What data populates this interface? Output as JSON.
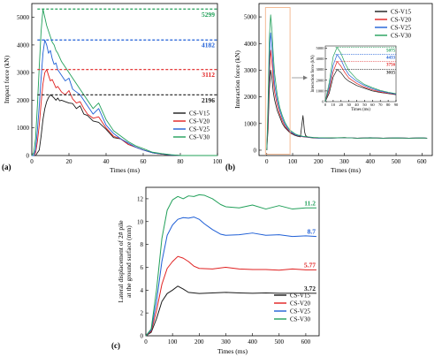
{
  "colors": {
    "CS-V15": "#1a1a1a",
    "CS-V20": "#e02020",
    "CS-V25": "#1f5fd6",
    "CS-V30": "#22a05a",
    "highlight_box": "#f3b48a",
    "arrow": "#777777"
  },
  "chart_data": [
    {
      "id": "a",
      "panel_label": "(a)",
      "type": "line",
      "xlabel": "Times (ms)",
      "ylabel": "Impact force (kN)",
      "xlim": [
        0,
        100
      ],
      "ylim": [
        0,
        5500
      ],
      "xticks": [
        "0",
        "20",
        "40",
        "60",
        "80",
        "100"
      ],
      "yticks": [
        "0",
        "1000",
        "2000",
        "3000",
        "4000",
        "5000"
      ],
      "legend_position": "bottom-right",
      "series": [
        {
          "name": "CS-V15",
          "peak": 2196,
          "peak_label": "2196",
          "x": [
            0,
            2,
            4,
            5,
            6,
            7,
            8,
            9,
            10,
            11,
            12,
            13,
            14,
            15,
            16,
            18,
            20,
            22,
            24,
            26,
            28,
            30,
            33,
            36,
            40,
            44,
            48,
            52,
            56,
            60,
            65,
            70,
            75,
            80,
            90,
            100
          ],
          "y": [
            0,
            0,
            200,
            700,
            1300,
            1700,
            1950,
            2100,
            2196,
            2150,
            2080,
            2000,
            2080,
            1980,
            2000,
            1950,
            1900,
            1880,
            1700,
            1800,
            1500,
            1450,
            1250,
            1200,
            950,
            650,
            600,
            400,
            300,
            200,
            100,
            50,
            20,
            0,
            0,
            0
          ]
        },
        {
          "name": "CS-V20",
          "peak": 3112,
          "peak_label": "3112",
          "x": [
            0,
            1,
            2,
            3,
            4,
            5,
            6,
            7,
            8,
            9,
            10,
            11,
            12,
            13,
            14,
            16,
            18,
            20,
            22,
            24,
            26,
            28,
            30,
            33,
            36,
            40,
            44,
            48,
            52,
            56,
            60,
            65,
            70,
            75,
            80,
            90,
            100
          ],
          "y": [
            0,
            0,
            100,
            500,
            1100,
            1900,
            2600,
            3000,
            3112,
            2900,
            2700,
            2750,
            2600,
            2450,
            2500,
            2300,
            2200,
            2350,
            2050,
            1900,
            1950,
            1700,
            1500,
            1350,
            1400,
            1000,
            700,
            600,
            400,
            300,
            200,
            100,
            50,
            20,
            0,
            0,
            0
          ]
        },
        {
          "name": "CS-V25",
          "peak": 4182,
          "peak_label": "4182",
          "x": [
            0,
            1,
            2,
            3,
            4,
            5,
            6,
            7,
            8,
            9,
            10,
            11,
            12,
            13,
            14,
            16,
            18,
            20,
            22,
            24,
            26,
            28,
            30,
            33,
            36,
            40,
            44,
            48,
            52,
            56,
            60,
            65,
            70,
            75,
            80,
            90,
            100
          ],
          "y": [
            0,
            0,
            200,
            900,
            1800,
            2800,
            3700,
            4182,
            4000,
            3700,
            3800,
            3500,
            3300,
            3350,
            3100,
            2900,
            2700,
            2800,
            2400,
            2300,
            2200,
            2000,
            1800,
            1500,
            1700,
            1100,
            800,
            600,
            450,
            300,
            200,
            100,
            60,
            20,
            0,
            0,
            0
          ]
        },
        {
          "name": "CS-V30",
          "peak": 5299,
          "peak_label": "5299",
          "x": [
            0,
            1,
            2,
            3,
            4,
            5,
            6,
            7,
            8,
            9,
            10,
            11,
            12,
            13,
            14,
            16,
            18,
            20,
            22,
            24,
            26,
            28,
            30,
            33,
            36,
            40,
            44,
            48,
            52,
            56,
            60,
            65,
            70,
            75,
            80,
            90,
            100
          ],
          "y": [
            0,
            100,
            600,
            1800,
            3200,
            4500,
            5299,
            5000,
            4700,
            4500,
            4300,
            4100,
            4000,
            3800,
            3700,
            3400,
            3200,
            3000,
            2800,
            2600,
            2400,
            2200,
            2000,
            1700,
            1900,
            1300,
            900,
            700,
            500,
            350,
            250,
            120,
            70,
            30,
            0,
            0,
            0
          ]
        }
      ]
    },
    {
      "id": "b",
      "panel_label": "(b)",
      "type": "line",
      "xlabel": "Times (ms)",
      "ylabel": "Interaction force (kN)",
      "xlim": [
        -30,
        640
      ],
      "ylim": [
        -200,
        5500
      ],
      "xticks": [
        "0",
        "100",
        "200",
        "300",
        "400",
        "500",
        "600"
      ],
      "yticks": [
        "0",
        "1000",
        "2000",
        "3000",
        "4000",
        "5000"
      ],
      "legend_position": "top-right",
      "series": [
        {
          "name": "CS-V15",
          "x": [
            0,
            5,
            10,
            15,
            20,
            25,
            30,
            40,
            50,
            60,
            70,
            80,
            90,
            100,
            110,
            120,
            130,
            140,
            143,
            146,
            150,
            160,
            180,
            200,
            250,
            300,
            350,
            400,
            450,
            500,
            550,
            600,
            620
          ],
          "y": [
            0,
            800,
            2300,
            3000,
            2700,
            2200,
            1900,
            1500,
            1250,
            1000,
            850,
            750,
            650,
            600,
            550,
            520,
            500,
            1300,
            1000,
            700,
            550,
            480,
            460,
            450,
            460,
            470,
            450,
            470,
            450,
            460,
            450,
            460,
            450
          ]
        },
        {
          "name": "CS-V20",
          "x": [
            0,
            5,
            10,
            15,
            20,
            25,
            30,
            40,
            50,
            60,
            70,
            80,
            90,
            100,
            110,
            120,
            140,
            160,
            180,
            200,
            250,
            300,
            350,
            400,
            450,
            500,
            550,
            600,
            620
          ],
          "y": [
            0,
            1100,
            2800,
            3750,
            3300,
            2700,
            2200,
            1700,
            1350,
            1100,
            900,
            780,
            680,
            620,
            570,
            540,
            500,
            480,
            470,
            460,
            450,
            470,
            450,
            460,
            450,
            460,
            450,
            460,
            450
          ]
        },
        {
          "name": "CS-V25",
          "x": [
            0,
            5,
            10,
            15,
            20,
            25,
            30,
            40,
            50,
            60,
            70,
            80,
            90,
            100,
            110,
            120,
            140,
            160,
            180,
            200,
            250,
            300,
            350,
            400,
            450,
            500,
            550,
            600,
            620
          ],
          "y": [
            0,
            1400,
            3400,
            4400,
            3900,
            3100,
            2500,
            1900,
            1500,
            1200,
            980,
            820,
            700,
            640,
            580,
            550,
            510,
            490,
            470,
            460,
            450,
            470,
            450,
            460,
            450,
            460,
            450,
            460,
            450
          ]
        },
        {
          "name": "CS-V30",
          "x": [
            0,
            5,
            10,
            15,
            20,
            25,
            30,
            40,
            50,
            60,
            70,
            80,
            90,
            100,
            110,
            120,
            140,
            160,
            180,
            200,
            250,
            300,
            350,
            400,
            450,
            500,
            550,
            600,
            620
          ],
          "y": [
            0,
            1800,
            4200,
            5075,
            4500,
            3600,
            2900,
            2100,
            1600,
            1300,
            1050,
            880,
            750,
            680,
            610,
            570,
            520,
            500,
            480,
            470,
            460,
            470,
            450,
            460,
            450,
            460,
            450,
            460,
            450
          ]
        }
      ],
      "inset": {
        "xlabel": "Times (ms)",
        "ylabel": "Interaction force (kN)",
        "xlim": [
          0,
          90
        ],
        "ylim": [
          0,
          5200
        ],
        "xticks": [
          "0",
          "10",
          "20",
          "30",
          "40",
          "50",
          "60",
          "70",
          "80",
          "90"
        ],
        "yticks": [
          "0",
          "1000",
          "2000",
          "3000",
          "4000",
          "5000"
        ],
        "peaks": [
          {
            "series": "CS-V30",
            "value": 5075,
            "label": "5075"
          },
          {
            "series": "CS-V25",
            "value": 4433,
            "label": "4433"
          },
          {
            "series": "CS-V20",
            "value": 3756,
            "label": "3756"
          },
          {
            "series": "CS-V15",
            "value": 3015,
            "label": "3015"
          }
        ]
      }
    },
    {
      "id": "c",
      "panel_label": "(c)",
      "type": "line",
      "xlabel": "Times (ms)",
      "ylabel_lines": [
        "Lateral displacement of 2# pile",
        "at the ground surface (mm)"
      ],
      "xlim": [
        0,
        650
      ],
      "ylim": [
        0,
        13
      ],
      "xticks": [
        "0",
        "100",
        "200",
        "300",
        "400",
        "500",
        "600"
      ],
      "yticks": [
        "0",
        "2",
        "4",
        "6",
        "8",
        "10",
        "12"
      ],
      "legend_position": "bottom-right",
      "series": [
        {
          "name": "CS-V15",
          "final": 3.72,
          "final_label": "3.72",
          "x": [
            0,
            20,
            40,
            60,
            80,
            100,
            120,
            140,
            160,
            180,
            200,
            250,
            300,
            350,
            400,
            450,
            500,
            550,
            600,
            640
          ],
          "y": [
            0,
            0.3,
            1.5,
            3.0,
            3.7,
            4.0,
            4.35,
            4.1,
            3.8,
            3.75,
            3.7,
            3.75,
            3.8,
            3.75,
            3.72,
            3.75,
            3.72,
            3.72,
            3.72,
            3.72
          ]
        },
        {
          "name": "CS-V20",
          "final": 5.77,
          "final_label": "5.77",
          "x": [
            0,
            20,
            40,
            60,
            80,
            100,
            120,
            140,
            160,
            180,
            200,
            250,
            300,
            350,
            400,
            450,
            500,
            550,
            600,
            640
          ],
          "y": [
            0,
            0.4,
            2.2,
            4.5,
            5.9,
            6.5,
            6.95,
            6.8,
            6.5,
            6.1,
            5.9,
            5.85,
            6.0,
            5.85,
            5.8,
            5.8,
            5.75,
            5.85,
            5.77,
            5.77
          ]
        },
        {
          "name": "CS-V25",
          "final": 8.7,
          "final_label": "8.7",
          "x": [
            0,
            20,
            40,
            60,
            80,
            100,
            120,
            140,
            160,
            180,
            200,
            220,
            250,
            280,
            300,
            350,
            400,
            450,
            500,
            550,
            600,
            640
          ],
          "y": [
            0,
            0.5,
            3.0,
            6.5,
            8.8,
            9.7,
            10.2,
            10.35,
            10.3,
            10.4,
            10.2,
            9.8,
            9.3,
            8.9,
            8.8,
            8.85,
            9.0,
            8.8,
            8.85,
            8.7,
            8.75,
            8.7
          ]
        },
        {
          "name": "CS-V30",
          "final": 11.2,
          "final_label": "11.2",
          "x": [
            0,
            20,
            40,
            60,
            80,
            100,
            120,
            140,
            160,
            180,
            200,
            220,
            250,
            280,
            300,
            350,
            400,
            450,
            500,
            550,
            600,
            640
          ],
          "y": [
            0,
            0.6,
            4.0,
            8.5,
            11.0,
            11.9,
            12.2,
            12.0,
            12.25,
            12.2,
            12.35,
            12.3,
            12.0,
            11.5,
            11.3,
            11.2,
            11.45,
            11.1,
            11.4,
            11.1,
            11.2,
            11.2
          ]
        }
      ]
    }
  ]
}
